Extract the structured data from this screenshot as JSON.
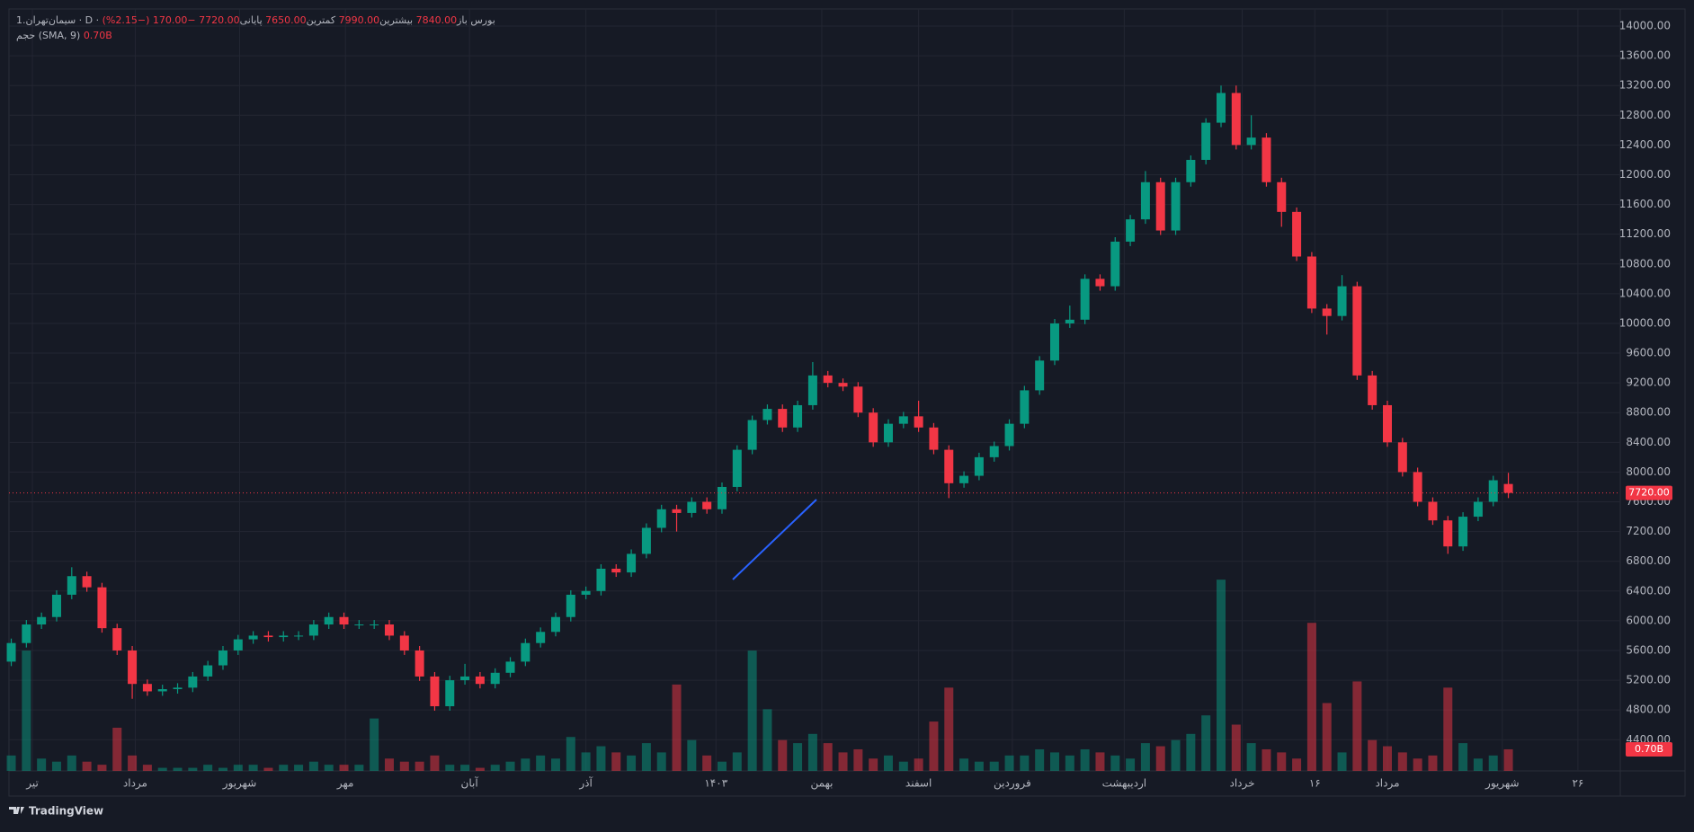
{
  "chart_data": {
    "type": "candlestick",
    "legend": {
      "symbol": "سیمان‌تهران.1 · D · بورس",
      "open_label": "باز",
      "open": "7840.00",
      "high_label": "بیشترین",
      "high": "7990.00",
      "low_label": "کمترین",
      "low": "7650.00",
      "close_label": "پایانی",
      "close": "7720.00",
      "change": "−170.00 (−2.15%)",
      "volume_label": "حجم (SMA, 9)",
      "volume": "0.70B"
    },
    "ohlc": [
      [
        5450,
        5760,
        5390,
        5700
      ],
      [
        5700,
        6010,
        5640,
        5950
      ],
      [
        5950,
        6110,
        5890,
        6050
      ],
      [
        6050,
        6410,
        5990,
        6350
      ],
      [
        6350,
        6720,
        6290,
        6600
      ],
      [
        6600,
        6660,
        6390,
        6450
      ],
      [
        6450,
        6510,
        5840,
        5900
      ],
      [
        5900,
        5960,
        5540,
        5600
      ],
      [
        5600,
        5660,
        4950,
        5150
      ],
      [
        5150,
        5210,
        4990,
        5050
      ],
      [
        5050,
        5140,
        4990,
        5080
      ],
      [
        5080,
        5160,
        5020,
        5100
      ],
      [
        5100,
        5310,
        5040,
        5250
      ],
      [
        5250,
        5460,
        5190,
        5400
      ],
      [
        5400,
        5660,
        5340,
        5600
      ],
      [
        5600,
        5810,
        5540,
        5750
      ],
      [
        5750,
        5860,
        5690,
        5800
      ],
      [
        5800,
        5860,
        5720,
        5780
      ],
      [
        5780,
        5860,
        5720,
        5800
      ],
      [
        5800,
        5860,
        5740,
        5800
      ],
      [
        5800,
        6010,
        5740,
        5950
      ],
      [
        5950,
        6110,
        5890,
        6050
      ],
      [
        6050,
        6110,
        5890,
        5950
      ],
      [
        5950,
        6010,
        5890,
        5950
      ],
      [
        5950,
        6010,
        5890,
        5950
      ],
      [
        5950,
        6010,
        5740,
        5800
      ],
      [
        5800,
        5860,
        5540,
        5600
      ],
      [
        5600,
        5660,
        5190,
        5250
      ],
      [
        5250,
        5310,
        4790,
        4850
      ],
      [
        4850,
        5260,
        4790,
        5200
      ],
      [
        5200,
        5420,
        5140,
        5250
      ],
      [
        5250,
        5310,
        5090,
        5150
      ],
      [
        5150,
        5360,
        5090,
        5300
      ],
      [
        5300,
        5510,
        5240,
        5450
      ],
      [
        5450,
        5760,
        5390,
        5700
      ],
      [
        5700,
        5910,
        5640,
        5850
      ],
      [
        5850,
        6110,
        5790,
        6050
      ],
      [
        6050,
        6410,
        5990,
        6350
      ],
      [
        6350,
        6460,
        6290,
        6400
      ],
      [
        6400,
        6760,
        6340,
        6700
      ],
      [
        6700,
        6760,
        6590,
        6650
      ],
      [
        6650,
        6960,
        6590,
        6900
      ],
      [
        6900,
        7310,
        6840,
        7250
      ],
      [
        7250,
        7560,
        7190,
        7500
      ],
      [
        7500,
        7560,
        7200,
        7450
      ],
      [
        7450,
        7660,
        7390,
        7600
      ],
      [
        7600,
        7660,
        7440,
        7500
      ],
      [
        7500,
        7860,
        7440,
        7800
      ],
      [
        7800,
        8360,
        7740,
        8300
      ],
      [
        8300,
        8760,
        8240,
        8700
      ],
      [
        8700,
        8910,
        8640,
        8850
      ],
      [
        8850,
        8910,
        8540,
        8600
      ],
      [
        8600,
        8960,
        8540,
        8900
      ],
      [
        8900,
        9480,
        8840,
        9300
      ],
      [
        9300,
        9360,
        9140,
        9200
      ],
      [
        9200,
        9260,
        9090,
        9150
      ],
      [
        9150,
        9210,
        8740,
        8800
      ],
      [
        8800,
        8860,
        8340,
        8400
      ],
      [
        8400,
        8710,
        8340,
        8650
      ],
      [
        8650,
        8810,
        8590,
        8750
      ],
      [
        8750,
        8960,
        8540,
        8600
      ],
      [
        8600,
        8660,
        8240,
        8300
      ],
      [
        8300,
        8360,
        7650,
        7850
      ],
      [
        7850,
        8010,
        7790,
        7950
      ],
      [
        7950,
        8260,
        7890,
        8200
      ],
      [
        8200,
        8410,
        8140,
        8350
      ],
      [
        8350,
        8710,
        8290,
        8650
      ],
      [
        8650,
        9160,
        8590,
        9100
      ],
      [
        9100,
        9560,
        9040,
        9500
      ],
      [
        9500,
        10060,
        9440,
        10000
      ],
      [
        10000,
        10240,
        9940,
        10050
      ],
      [
        10050,
        10660,
        9990,
        10600
      ],
      [
        10600,
        10660,
        10440,
        10500
      ],
      [
        10500,
        11160,
        10440,
        11100
      ],
      [
        11100,
        11460,
        11040,
        11400
      ],
      [
        11400,
        12050,
        11340,
        11900
      ],
      [
        11900,
        11960,
        11190,
        11250
      ],
      [
        11250,
        11960,
        11190,
        11900
      ],
      [
        11900,
        12260,
        11840,
        12200
      ],
      [
        12200,
        12760,
        12140,
        12700
      ],
      [
        12700,
        13200,
        12640,
        13100
      ],
      [
        13100,
        13200,
        12340,
        12400
      ],
      [
        12400,
        12800,
        12340,
        12500
      ],
      [
        12500,
        12560,
        11840,
        11900
      ],
      [
        11900,
        11960,
        11300,
        11500
      ],
      [
        11500,
        11560,
        10840,
        10900
      ],
      [
        10900,
        10960,
        10140,
        10200
      ],
      [
        10200,
        10260,
        9850,
        10100
      ],
      [
        10100,
        10650,
        10040,
        10500
      ],
      [
        10500,
        10560,
        9240,
        9300
      ],
      [
        9300,
        9360,
        8840,
        8900
      ],
      [
        8900,
        8960,
        8340,
        8400
      ],
      [
        8400,
        8460,
        7940,
        8000
      ],
      [
        8000,
        8060,
        7540,
        7600
      ],
      [
        7600,
        7660,
        7290,
        7350
      ],
      [
        7350,
        7410,
        6900,
        7000
      ],
      [
        7000,
        7460,
        6940,
        7400
      ],
      [
        7400,
        7660,
        7340,
        7600
      ],
      [
        7600,
        7950,
        7540,
        7890
      ],
      [
        7840,
        7990,
        7650,
        7720
      ]
    ],
    "volume": [
      0.5,
      3.9,
      0.4,
      0.3,
      0.5,
      0.3,
      0.2,
      1.4,
      0.5,
      0.2,
      0.1,
      0.1,
      0.1,
      0.2,
      0.1,
      0.2,
      0.2,
      0.1,
      0.2,
      0.2,
      0.3,
      0.2,
      0.2,
      0.2,
      1.7,
      0.4,
      0.3,
      0.3,
      0.5,
      0.2,
      0.2,
      0.1,
      0.2,
      0.3,
      0.4,
      0.5,
      0.4,
      1.1,
      0.6,
      0.8,
      0.6,
      0.5,
      0.9,
      0.6,
      2.8,
      1.0,
      0.5,
      0.3,
      0.6,
      3.9,
      2.0,
      1.0,
      0.9,
      1.2,
      0.9,
      0.6,
      0.7,
      0.4,
      0.5,
      0.3,
      0.4,
      1.6,
      2.7,
      0.4,
      0.3,
      0.3,
      0.5,
      0.5,
      0.7,
      0.6,
      0.5,
      0.7,
      0.6,
      0.5,
      0.4,
      0.9,
      0.8,
      1.0,
      1.2,
      1.8,
      6.2,
      1.5,
      0.9,
      0.7,
      0.6,
      0.4,
      4.8,
      2.2,
      0.6,
      2.9,
      1.0,
      0.8,
      0.6,
      0.4,
      0.5,
      2.7,
      0.9,
      0.4,
      0.5,
      0.7
    ],
    "up_color": "#089981",
    "down_color": "#f23645",
    "ylim": [
      3980,
      14230
    ],
    "yticks": [
      {
        "value": 4400,
        "label": "4400.00"
      },
      {
        "value": 4800,
        "label": "4800.00"
      },
      {
        "value": 5200,
        "label": "5200.00"
      },
      {
        "value": 5600,
        "label": "5600.00"
      },
      {
        "value": 6000,
        "label": "6000.00"
      },
      {
        "value": 6400,
        "label": "6400.00"
      },
      {
        "value": 6800,
        "label": "6800.00"
      },
      {
        "value": 7200,
        "label": "7200.00"
      },
      {
        "value": 7600,
        "label": "7600.00"
      },
      {
        "value": 8000,
        "label": "8000.00"
      },
      {
        "value": 8400,
        "label": "8400.00"
      },
      {
        "value": 8800,
        "label": "8800.00"
      },
      {
        "value": 9200,
        "label": "9200.00"
      },
      {
        "value": 9600,
        "label": "9600.00"
      },
      {
        "value": 10000,
        "label": "10000.00"
      },
      {
        "value": 10400,
        "label": "10400.00"
      },
      {
        "value": 10800,
        "label": "10800.00"
      },
      {
        "value": 11200,
        "label": "11200.00"
      },
      {
        "value": 11600,
        "label": "11600.00"
      },
      {
        "value": 12000,
        "label": "12000.00"
      },
      {
        "value": 12400,
        "label": "12400.00"
      },
      {
        "value": 12800,
        "label": "12800.00"
      },
      {
        "value": 13200,
        "label": "13200.00"
      },
      {
        "value": 13600,
        "label": "13600.00"
      },
      {
        "value": 14000,
        "label": "14000.00"
      }
    ],
    "y2lim": [
      0,
      24.7
    ],
    "xlim": [
      -0.15,
      106.4
    ],
    "xticks": [
      {
        "value": 1.4,
        "label": "تیر"
      },
      {
        "value": 8.2,
        "label": "مرداد"
      },
      {
        "value": 15.1,
        "label": "شهریور"
      },
      {
        "value": 22.1,
        "label": "مهر"
      },
      {
        "value": 30.3,
        "label": "آبان"
      },
      {
        "value": 38,
        "label": "آذر"
      },
      {
        "value": 46.6,
        "label": "۱۴۰۳"
      },
      {
        "value": 53.6,
        "label": "بهمن"
      },
      {
        "value": 60,
        "label": "اسفند"
      },
      {
        "value": 66.2,
        "label": "فروردین"
      },
      {
        "value": 73.6,
        "label": "اردیبهشت"
      },
      {
        "value": 81.4,
        "label": "خرداد"
      },
      {
        "value": 86.2,
        "label": "۱۶"
      },
      {
        "value": 91,
        "label": "مرداد"
      },
      {
        "value": 98.6,
        "label": "شهریور"
      },
      {
        "value": 103.6,
        "label": "۲۶"
      }
    ],
    "last_price_label": "7720.00",
    "last_volume_label": "0.70B",
    "grid": true
  },
  "footer": {
    "brand": "TradingView"
  }
}
